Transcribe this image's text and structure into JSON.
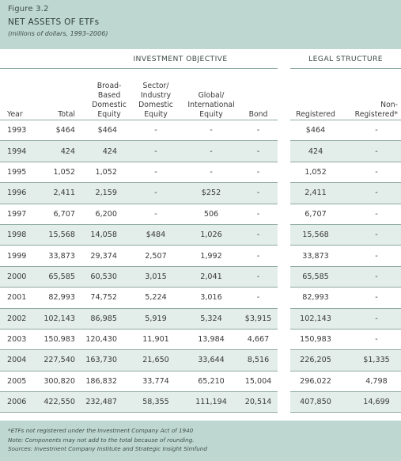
{
  "figure_label": "Figure 3.2",
  "title": "NET ASSETS OF ETFs",
  "subtitle": "(millions of dollars, 1993–2006)",
  "groups": {
    "investment_objective": "INVESTMENT OBJECTIVE",
    "legal_structure": "LEGAL STRUCTURE"
  },
  "columns": {
    "year": "Year",
    "total": "Total",
    "broad": "Broad-\nBased\nDomestic\nEquity",
    "sector": "Sector/\nIndustry\nDomestic\nEquity",
    "global": "Global/\nInternational\nEquity",
    "bond": "Bond",
    "registered": "Registered",
    "nonregistered": "Non-\nRegistered*"
  },
  "rows": [
    [
      "1993",
      "$464",
      "$464",
      "-",
      "-",
      "-",
      "$464",
      "-"
    ],
    [
      "1994",
      "424",
      "424",
      "-",
      "-",
      "-",
      "424",
      "-"
    ],
    [
      "1995",
      "1,052",
      "1,052",
      "-",
      "-",
      "-",
      "1,052",
      "-"
    ],
    [
      "1996",
      "2,411",
      "2,159",
      "-",
      "$252",
      "-",
      "2,411",
      "-"
    ],
    [
      "1997",
      "6,707",
      "6,200",
      "-",
      "506",
      "-",
      "6,707",
      "-"
    ],
    [
      "1998",
      "15,568",
      "14,058",
      "$484",
      "1,026",
      "-",
      "15,568",
      "-"
    ],
    [
      "1999",
      "33,873",
      "29,374",
      "2,507",
      "1,992",
      "-",
      "33,873",
      "-"
    ],
    [
      "2000",
      "65,585",
      "60,530",
      "3,015",
      "2,041",
      "-",
      "65,585",
      "-"
    ],
    [
      "2001",
      "82,993",
      "74,752",
      "5,224",
      "3,016",
      "-",
      "82,993",
      "-"
    ],
    [
      "2002",
      "102,143",
      "86,985",
      "5,919",
      "5,324",
      "$3,915",
      "102,143",
      "-"
    ],
    [
      "2003",
      "150,983",
      "120,430",
      "11,901",
      "13,984",
      "4,667",
      "150,983",
      "-"
    ],
    [
      "2004",
      "227,540",
      "163,730",
      "21,650",
      "33,644",
      "8,516",
      "226,205",
      "$1,335"
    ],
    [
      "2005",
      "300,820",
      "186,832",
      "33,774",
      "65,210",
      "15,004",
      "296,022",
      "4,798"
    ],
    [
      "2006",
      "422,550",
      "232,487",
      "58,355",
      "111,194",
      "20,514",
      "407,850",
      "14,699"
    ]
  ],
  "footnotes": [
    "*ETFs not registered under the Investment Company Act of 1940",
    "Note: Components may not add to the total because of rounding.",
    "Sources: Investment Company Institute and Strategic Insight Simfund"
  ]
}
